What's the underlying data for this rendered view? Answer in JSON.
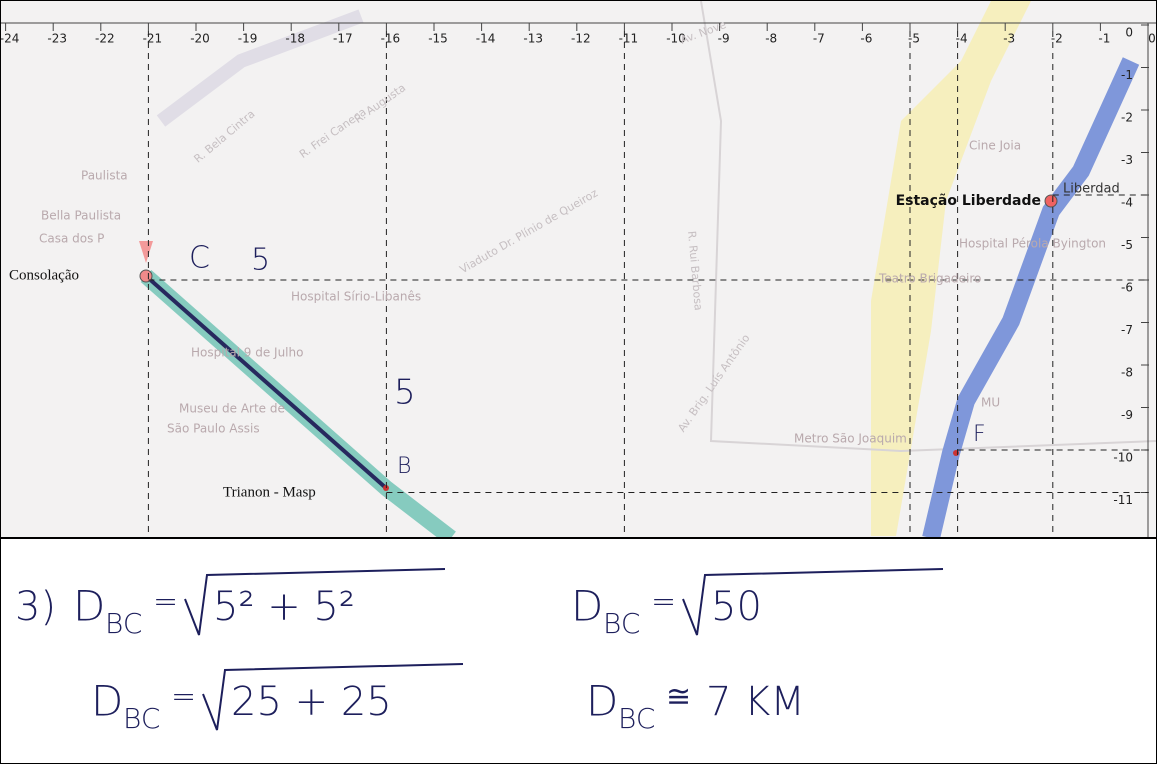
{
  "map": {
    "xticks": [
      -24,
      -23,
      -22,
      -21,
      -20,
      -19,
      -18,
      -17,
      -16,
      -15,
      -14,
      -13,
      -12,
      -11,
      -10,
      -9,
      -8,
      -7,
      -6,
      -5,
      -4,
      -3,
      -2,
      -1,
      0
    ],
    "yticks": [
      0,
      -1,
      -2,
      -3,
      -4,
      -5,
      -6,
      -7,
      -8,
      -9,
      -10,
      -11
    ],
    "places": [
      "Paulista",
      "Bella Paulista",
      "Casa dos P",
      "Hospital Sírio-Libanês",
      "Hospital 9 de Julho",
      "Museu de Arte de",
      "São Paulo Assis",
      "Viaduto Dr. Plínio de Queiroz",
      "Av. Brig. Luís Antônio",
      "Av. Nove",
      "R. Bela Cintra",
      "R. Augusta",
      "R. Frei Caneca",
      "R. Rui Barbosa",
      "Metro São Joaquim",
      "Cine Joia",
      "Hospital Pérola Byington",
      "Teatro Brigadeiro",
      "MU",
      "Liberdad"
    ],
    "stations": [
      "Consolação",
      "Trianon - Masp",
      "Estação Liberdade"
    ],
    "handwritten": [
      "C",
      "5",
      "5",
      "B",
      "F"
    ]
  },
  "calculation": {
    "prefix": "3)",
    "lines": [
      {
        "symbol": "D",
        "sub": "BC",
        "rel": "=",
        "radicand": "5² + 5²"
      },
      {
        "symbol": "D",
        "sub": "BC",
        "rel": "=",
        "radicand": "25 + 25"
      },
      {
        "symbol": "D",
        "sub": "BC",
        "rel": "=",
        "radicand": "50"
      },
      {
        "symbol": "D",
        "sub": "BC",
        "rel": "≅",
        "result": "7 KM"
      }
    ]
  }
}
